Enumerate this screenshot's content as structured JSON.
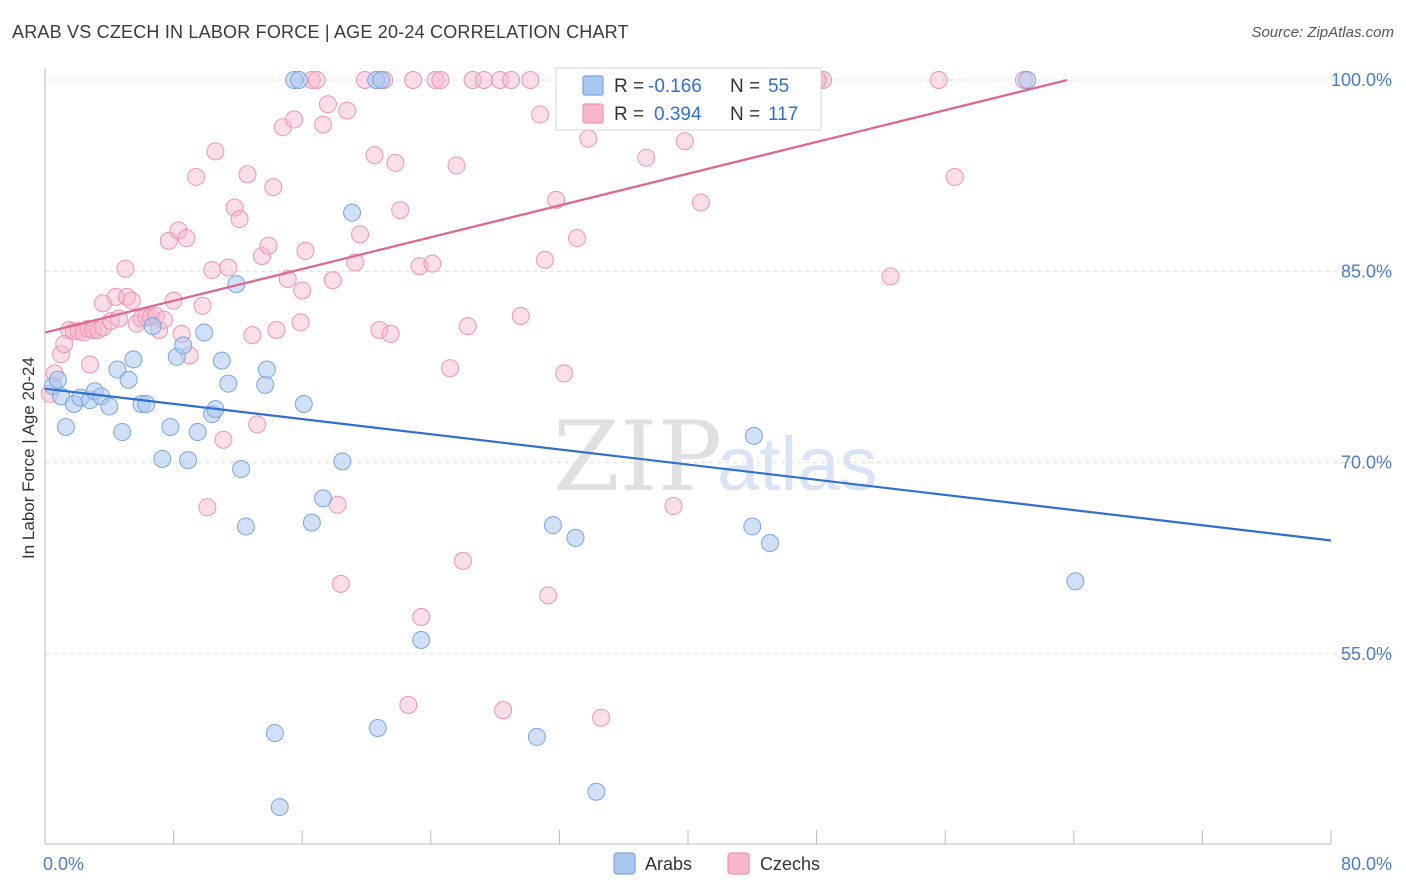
{
  "header": {
    "title": "ARAB VS CZECH IN LABOR FORCE | AGE 20-24 CORRELATION CHART",
    "source": "Source: ZipAtlas.com"
  },
  "watermark": {
    "zip": "ZIP",
    "atlas": "atlas"
  },
  "legend": {
    "arab": {
      "r_label": "R =",
      "r_value": "-0.166",
      "n_label": "N =",
      "n_value": "55"
    },
    "czech": {
      "r_label": "R =",
      "r_value": "0.394",
      "n_label": "N =",
      "n_value": "117"
    }
  },
  "bottom_legend": {
    "arab": "Arabs",
    "czech": "Czechs"
  },
  "colors": {
    "arab_fill": "#a9c8f0",
    "arab_stroke": "#7aa5e0",
    "arab_line": "#2f6fd0",
    "czech_fill": "#f7b6c9",
    "czech_stroke": "#ef94b2",
    "czech_line": "#e06690",
    "tick": "#4a7cc7",
    "grid": "#dcdcdc"
  },
  "chart_data": {
    "type": "scatter",
    "title": "ARAB VS CZECH IN LABOR FORCE | AGE 20-24 CORRELATION CHART",
    "xlabel": "",
    "ylabel": "In Labor Force | Age 20-24",
    "xlim": [
      0,
      80
    ],
    "ylim": [
      40,
      102
    ],
    "x_tick_labels": [
      "0.0%",
      "80.0%"
    ],
    "y_ticks": [
      55,
      70,
      85,
      100
    ],
    "y_tick_labels": [
      "55.0%",
      "70.0%",
      "85.0%",
      "100.0%"
    ],
    "grid": true,
    "legend_position": "top-center",
    "series": [
      {
        "name": "Arabs",
        "r": -0.166,
        "n": 55,
        "trend": {
          "x": [
            0,
            80
          ],
          "y": [
            75.8,
            63.9
          ]
        },
        "points": [
          [
            0.5,
            76.0
          ],
          [
            0.8,
            76.5
          ],
          [
            1.0,
            75.2
          ],
          [
            1.3,
            72.8
          ],
          [
            1.8,
            74.6
          ],
          [
            2.2,
            75.1
          ],
          [
            2.8,
            74.9
          ],
          [
            3.1,
            75.6
          ],
          [
            3.5,
            75.2
          ],
          [
            4.0,
            74.4
          ],
          [
            4.5,
            77.3
          ],
          [
            4.8,
            72.4
          ],
          [
            5.2,
            76.5
          ],
          [
            5.5,
            78.1
          ],
          [
            6.0,
            74.6
          ],
          [
            6.3,
            74.6
          ],
          [
            6.7,
            80.7
          ],
          [
            7.3,
            70.3
          ],
          [
            7.8,
            72.8
          ],
          [
            8.2,
            78.3
          ],
          [
            8.6,
            79.2
          ],
          [
            8.9,
            70.2
          ],
          [
            9.5,
            72.4
          ],
          [
            9.9,
            80.2
          ],
          [
            10.4,
            73.8
          ],
          [
            10.6,
            74.2
          ],
          [
            11.0,
            78.0
          ],
          [
            11.4,
            76.2
          ],
          [
            11.9,
            84.0
          ],
          [
            12.2,
            69.5
          ],
          [
            12.5,
            65.0
          ],
          [
            13.7,
            76.1
          ],
          [
            13.8,
            77.3
          ],
          [
            14.3,
            48.8
          ],
          [
            14.6,
            43.0
          ],
          [
            15.5,
            100.0
          ],
          [
            15.8,
            100.0
          ],
          [
            16.1,
            74.6
          ],
          [
            16.6,
            65.3
          ],
          [
            17.3,
            67.2
          ],
          [
            18.5,
            70.1
          ],
          [
            19.1,
            89.6
          ],
          [
            20.6,
            100.0
          ],
          [
            20.9,
            100.0
          ],
          [
            20.7,
            49.2
          ],
          [
            23.4,
            56.1
          ],
          [
            30.6,
            48.5
          ],
          [
            31.6,
            65.1
          ],
          [
            33.0,
            64.1
          ],
          [
            34.3,
            44.2
          ],
          [
            44.1,
            72.1
          ],
          [
            44.0,
            65.0
          ],
          [
            45.1,
            63.7
          ],
          [
            61.1,
            100.0
          ],
          [
            64.1,
            60.7
          ]
        ]
      },
      {
        "name": "Czechs",
        "r": 0.394,
        "n": 117,
        "trend": {
          "x": [
            0,
            63.6
          ],
          "y": [
            80.2,
            100.0
          ]
        },
        "points": [
          [
            0.3,
            75.4
          ],
          [
            0.6,
            77.0
          ],
          [
            1.0,
            78.5
          ],
          [
            1.2,
            79.3
          ],
          [
            1.5,
            80.4
          ],
          [
            1.8,
            80.3
          ],
          [
            2.1,
            80.3
          ],
          [
            2.4,
            80.2
          ],
          [
            2.7,
            80.5
          ],
          [
            2.8,
            77.7
          ],
          [
            3.0,
            80.4
          ],
          [
            3.3,
            80.4
          ],
          [
            3.6,
            80.6
          ],
          [
            3.6,
            82.5
          ],
          [
            4.1,
            81.1
          ],
          [
            4.4,
            83.0
          ],
          [
            4.6,
            81.3
          ],
          [
            5.0,
            85.2
          ],
          [
            5.1,
            83.0
          ],
          [
            5.4,
            82.7
          ],
          [
            5.7,
            80.9
          ],
          [
            6.0,
            81.3
          ],
          [
            6.3,
            81.4
          ],
          [
            6.6,
            81.4
          ],
          [
            6.9,
            81.5
          ],
          [
            7.1,
            80.4
          ],
          [
            7.4,
            81.2
          ],
          [
            7.7,
            87.4
          ],
          [
            8.0,
            82.7
          ],
          [
            8.3,
            88.2
          ],
          [
            8.5,
            80.1
          ],
          [
            8.8,
            87.6
          ],
          [
            9.0,
            78.4
          ],
          [
            9.4,
            92.4
          ],
          [
            9.8,
            82.3
          ],
          [
            10.1,
            66.5
          ],
          [
            10.4,
            85.1
          ],
          [
            10.6,
            94.4
          ],
          [
            11.1,
            71.8
          ],
          [
            11.4,
            85.3
          ],
          [
            11.8,
            90.0
          ],
          [
            12.1,
            89.1
          ],
          [
            12.6,
            92.6
          ],
          [
            12.9,
            80.0
          ],
          [
            13.2,
            73.0
          ],
          [
            13.5,
            86.2
          ],
          [
            13.9,
            87.0
          ],
          [
            14.2,
            91.6
          ],
          [
            14.4,
            80.4
          ],
          [
            14.8,
            96.3
          ],
          [
            15.1,
            84.4
          ],
          [
            15.5,
            96.9
          ],
          [
            15.9,
            81.0
          ],
          [
            16.0,
            83.5
          ],
          [
            16.2,
            86.6
          ],
          [
            16.6,
            100.0
          ],
          [
            16.9,
            100.0
          ],
          [
            17.3,
            96.5
          ],
          [
            17.6,
            98.1
          ],
          [
            17.9,
            84.3
          ],
          [
            18.2,
            66.7
          ],
          [
            18.4,
            60.5
          ],
          [
            18.8,
            97.6
          ],
          [
            19.3,
            85.7
          ],
          [
            19.6,
            87.9
          ],
          [
            19.9,
            100.0
          ],
          [
            20.5,
            94.1
          ],
          [
            20.8,
            80.4
          ],
          [
            21.1,
            100.0
          ],
          [
            21.5,
            80.1
          ],
          [
            21.8,
            93.5
          ],
          [
            22.1,
            89.8
          ],
          [
            22.6,
            51.0
          ],
          [
            22.9,
            100.0
          ],
          [
            23.3,
            85.4
          ],
          [
            23.4,
            57.9
          ],
          [
            24.1,
            85.6
          ],
          [
            24.3,
            100.0
          ],
          [
            24.6,
            100.0
          ],
          [
            25.2,
            77.4
          ],
          [
            25.6,
            93.3
          ],
          [
            26.0,
            62.3
          ],
          [
            26.3,
            80.7
          ],
          [
            26.6,
            100.0
          ],
          [
            27.3,
            100.0
          ],
          [
            28.3,
            100.0
          ],
          [
            28.5,
            50.6
          ],
          [
            29.0,
            100.0
          ],
          [
            29.6,
            81.5
          ],
          [
            30.2,
            100.0
          ],
          [
            30.8,
            97.3
          ],
          [
            31.1,
            85.9
          ],
          [
            31.3,
            59.6
          ],
          [
            31.8,
            90.6
          ],
          [
            32.3,
            77.0
          ],
          [
            32.8,
            100.0
          ],
          [
            33.1,
            87.6
          ],
          [
            33.8,
            95.4
          ],
          [
            34.3,
            100.0
          ],
          [
            34.6,
            50.0
          ],
          [
            35.6,
            100.0
          ],
          [
            37.4,
            93.9
          ],
          [
            38.6,
            100.0
          ],
          [
            39.1,
            66.6
          ],
          [
            39.8,
            95.2
          ],
          [
            40.4,
            100.0
          ],
          [
            40.8,
            90.4
          ],
          [
            41.2,
            100.0
          ],
          [
            43.1,
            100.0
          ],
          [
            47.5,
            100.0
          ],
          [
            48.0,
            100.0
          ],
          [
            48.1,
            100.0
          ],
          [
            48.4,
            100.0
          ],
          [
            52.6,
            84.6
          ],
          [
            55.6,
            100.0
          ],
          [
            56.6,
            92.4
          ],
          [
            60.9,
            100.0
          ]
        ]
      }
    ]
  }
}
